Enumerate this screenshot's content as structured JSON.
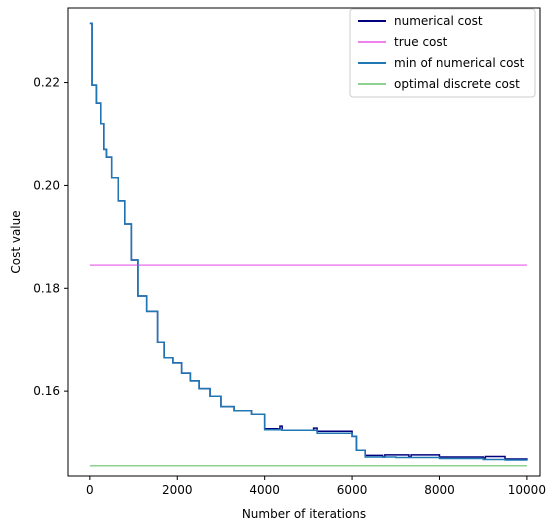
{
  "chart_data": {
    "type": "line",
    "xlabel": "Number of iterations",
    "ylabel": "Cost value",
    "xlim": [
      -500,
      10300
    ],
    "ylim": [
      0.1435,
      0.2345
    ],
    "xticks": [
      0,
      2000,
      4000,
      6000,
      8000,
      10000
    ],
    "yticks": [
      0.16,
      0.18,
      0.2,
      0.22
    ],
    "xtick_labels": [
      "0",
      "2000",
      "4000",
      "6000",
      "8000",
      "10000"
    ],
    "ytick_labels": [
      "0.16",
      "0.18",
      "0.20",
      "0.22"
    ],
    "grid": false,
    "legend_position": "top-right",
    "series": [
      {
        "name": "numerical cost",
        "color": "#00007f",
        "x": [
          0,
          50,
          150,
          250,
          320,
          380,
          500,
          650,
          800,
          950,
          1100,
          1300,
          1550,
          1700,
          1900,
          2100,
          2300,
          2500,
          2750,
          3000,
          3300,
          3700,
          4000,
          4300,
          4350,
          4400,
          5100,
          5120,
          5200,
          6000,
          6100,
          6300,
          6700,
          6750,
          7300,
          7350,
          8000,
          8500,
          9000,
          9050,
          9500,
          10000
        ],
        "y": [
          0.2315,
          0.2195,
          0.216,
          0.212,
          0.207,
          0.2055,
          0.2015,
          0.197,
          0.1925,
          0.1855,
          0.1785,
          0.1755,
          0.1695,
          0.1665,
          0.1655,
          0.1635,
          0.162,
          0.1605,
          0.159,
          0.157,
          0.1562,
          0.1555,
          0.1527,
          0.1526,
          0.1532,
          0.1524,
          0.1524,
          0.1528,
          0.1522,
          0.1512,
          0.1485,
          0.1475,
          0.1472,
          0.1476,
          0.1472,
          0.1476,
          0.1472,
          0.1472,
          0.147,
          0.1473,
          0.1468,
          0.1466
        ]
      },
      {
        "name": "true cost",
        "color": "#ee82ee",
        "x": [
          0,
          10000
        ],
        "y": [
          0.1845,
          0.1845
        ]
      },
      {
        "name": "min of numerical cost",
        "color": "#1f77b4",
        "x": [
          0,
          50,
          150,
          250,
          320,
          380,
          500,
          650,
          800,
          950,
          1100,
          1300,
          1550,
          1700,
          1900,
          2100,
          2300,
          2500,
          2750,
          3000,
          3300,
          3700,
          4000,
          4400,
          5200,
          6000,
          6100,
          6300,
          7000,
          8000,
          9000,
          9500,
          10000
        ],
        "y": [
          0.2315,
          0.2195,
          0.216,
          0.212,
          0.207,
          0.2055,
          0.2015,
          0.197,
          0.1925,
          0.1855,
          0.1785,
          0.1755,
          0.1695,
          0.1665,
          0.1655,
          0.1635,
          0.162,
          0.1605,
          0.159,
          0.157,
          0.1562,
          0.1555,
          0.1525,
          0.1524,
          0.1518,
          0.1512,
          0.1485,
          0.1472,
          0.1471,
          0.1469,
          0.1467,
          0.1466,
          0.1465
        ]
      },
      {
        "name": "optimal discrete cost",
        "color": "#90d190",
        "x": [
          0,
          10000
        ],
        "y": [
          0.1455,
          0.1455
        ]
      }
    ]
  }
}
